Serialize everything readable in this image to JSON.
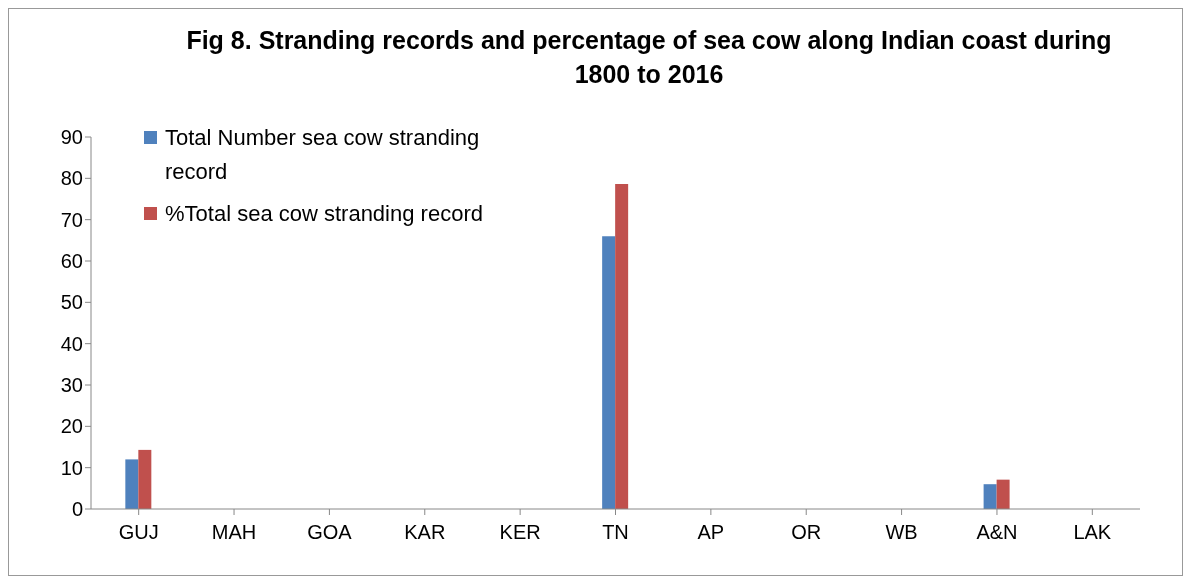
{
  "chart_data": {
    "type": "bar",
    "title": "Fig 8. Stranding records and percentage of sea cow along Indian coast during 1800 to 2016",
    "categories": [
      "GUJ",
      "MAH",
      "GOA",
      "KAR",
      "KER",
      "TN",
      "AP",
      "OR",
      "WB",
      "A&N",
      "LAK"
    ],
    "series": [
      {
        "name": "Total Number sea cow stranding record",
        "color": "#4f81bd",
        "values": [
          12,
          0,
          0,
          0,
          0,
          66,
          0,
          0,
          0,
          6,
          0
        ]
      },
      {
        "name": "%Total sea cow stranding record",
        "color": "#c0504d",
        "values": [
          14.3,
          0,
          0,
          0,
          0,
          78.6,
          0,
          0,
          0,
          7.1,
          0
        ]
      }
    ],
    "ylim": [
      0,
      90
    ],
    "yticks": [
      0,
      10,
      20,
      30,
      40,
      50,
      60,
      70,
      80,
      90
    ],
    "grid": false,
    "legend": "top left"
  }
}
